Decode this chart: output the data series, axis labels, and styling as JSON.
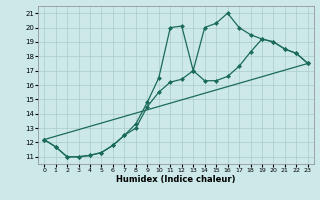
{
  "xlabel": "Humidex (Indice chaleur)",
  "bg_color": "#cce8e8",
  "grid_color": "#aacccc",
  "line_color": "#1a6b5a",
  "xlim": [
    -0.5,
    23.5
  ],
  "ylim": [
    10.5,
    21.5
  ],
  "xticks": [
    0,
    1,
    2,
    3,
    4,
    5,
    6,
    7,
    8,
    9,
    10,
    11,
    12,
    13,
    14,
    15,
    16,
    17,
    18,
    19,
    20,
    21,
    22,
    23
  ],
  "yticks": [
    11,
    12,
    13,
    14,
    15,
    16,
    17,
    18,
    19,
    20,
    21
  ],
  "line1_x": [
    0,
    1,
    2,
    3,
    4,
    5,
    6,
    7,
    8,
    9,
    10,
    11,
    12,
    13,
    14,
    15,
    16,
    17,
    18,
    19,
    20,
    21,
    22,
    23
  ],
  "line1_y": [
    12.2,
    11.7,
    11.0,
    11.0,
    11.1,
    11.3,
    11.8,
    12.5,
    13.3,
    14.8,
    16.5,
    20.0,
    20.1,
    17.0,
    20.0,
    20.3,
    21.0,
    20.0,
    19.5,
    19.2,
    19.0,
    18.5,
    18.2,
    17.5
  ],
  "line2_x": [
    0,
    1,
    2,
    3,
    4,
    5,
    6,
    7,
    8,
    9,
    10,
    11,
    12,
    13,
    14,
    15,
    16,
    17,
    18,
    19,
    20,
    21,
    22,
    23
  ],
  "line2_y": [
    12.2,
    11.7,
    11.0,
    11.0,
    11.1,
    11.3,
    11.8,
    12.5,
    13.0,
    14.5,
    15.5,
    16.2,
    16.4,
    17.0,
    16.3,
    16.3,
    16.6,
    17.3,
    18.3,
    19.2,
    19.0,
    18.5,
    18.2,
    17.5
  ],
  "line3_x": [
    0,
    23
  ],
  "line3_y": [
    12.2,
    17.5
  ]
}
